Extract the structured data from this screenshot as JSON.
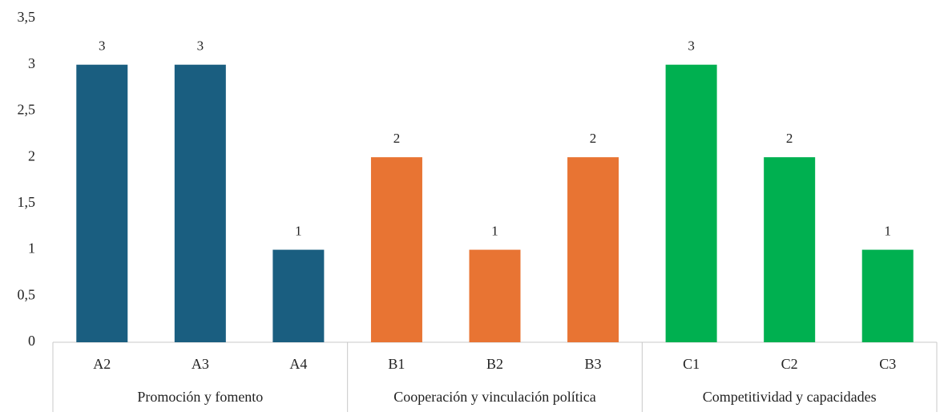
{
  "chart_data": {
    "type": "bar",
    "groups": [
      {
        "name": "Promoción y fomento",
        "color": "#1a5e80",
        "categories": [
          "A2",
          "A3",
          "A4"
        ],
        "values": [
          3,
          3,
          1
        ]
      },
      {
        "name": "Cooperación y vinculación política",
        "color": "#e87433",
        "categories": [
          "B1",
          "B2",
          "B3"
        ],
        "values": [
          2,
          1,
          2
        ]
      },
      {
        "name": "Competitividad y capacidades",
        "color": "#00b050",
        "categories": [
          "C1",
          "C2",
          "C3"
        ],
        "values": [
          3,
          2,
          1
        ]
      }
    ],
    "ylim": [
      0,
      3.5
    ],
    "yticks": [
      0,
      {
        "value": 0.5,
        "label": "0,5"
      },
      1,
      {
        "value": 1.5,
        "label": "1,5"
      },
      2,
      {
        "value": 2.5,
        "label": "2,5"
      },
      3,
      {
        "value": 3.5,
        "label": "3,5"
      }
    ],
    "grid": false
  }
}
